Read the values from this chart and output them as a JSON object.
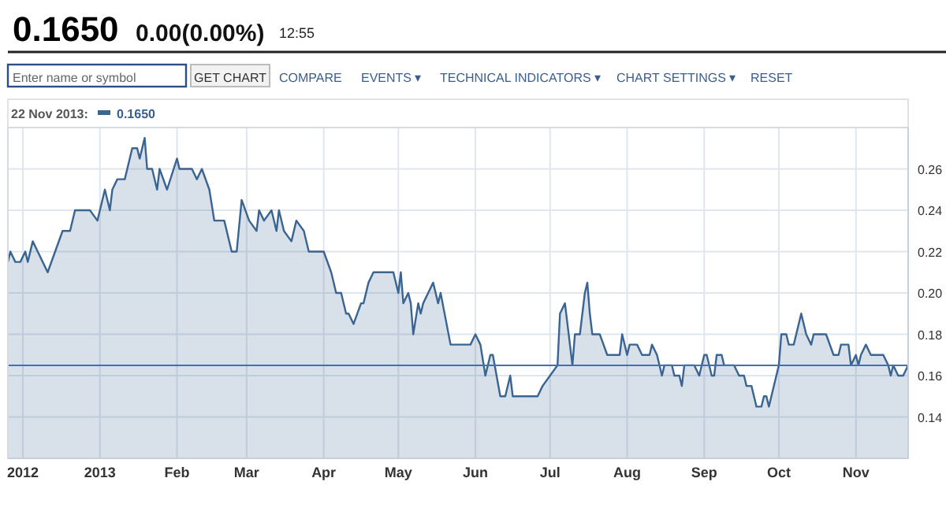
{
  "chart_data": {
    "type": "area",
    "title": "0.1650",
    "subtitle": "0.00(0.00%)",
    "annotations": [
      "12:55",
      "Enter name or symbol",
      "GET CHART",
      "COMPARE",
      "EVENTS ▾",
      "TECHNICAL INDICATORS ▾",
      "CHART SETTINGS ▾",
      "RESET",
      "22 Nov 2013:",
      "0.1650"
    ],
    "x": [
      "2012-11-25",
      "2012-11-26",
      "2012-11-28",
      "2012-11-30",
      "2012-12-02",
      "2012-12-03",
      "2012-12-05",
      "2012-12-07",
      "2012-12-09",
      "2012-12-11",
      "2012-12-14",
      "2012-12-17",
      "2012-12-20",
      "2012-12-22",
      "2012-12-28",
      "2012-12-31",
      "2013-01-03",
      "2013-01-05",
      "2013-01-06",
      "2013-01-08",
      "2013-01-11",
      "2013-01-14",
      "2013-01-16",
      "2013-01-17",
      "2013-01-19",
      "2013-01-20",
      "2013-01-22",
      "2013-01-24",
      "2013-01-25",
      "2013-01-28",
      "2013-02-01",
      "2013-02-02",
      "2013-02-07",
      "2013-02-09",
      "2013-02-11",
      "2013-02-14",
      "2013-02-16",
      "2013-02-20",
      "2013-02-23",
      "2013-02-25",
      "2013-02-27",
      "2013-03-02",
      "2013-03-05",
      "2013-03-06",
      "2013-03-08",
      "2013-03-11",
      "2013-03-13",
      "2013-03-14",
      "2013-03-16",
      "2013-03-19",
      "2013-03-21",
      "2013-03-24",
      "2013-03-26",
      "2013-03-28",
      "2013-04-01",
      "2013-04-04",
      "2013-04-06",
      "2013-04-08",
      "2013-04-10",
      "2013-04-11",
      "2013-04-13",
      "2013-04-16",
      "2013-04-17",
      "2013-04-19",
      "2013-04-21",
      "2013-04-29",
      "2013-05-01",
      "2013-05-02",
      "2013-05-03",
      "2013-05-05",
      "2013-05-06",
      "2013-05-07",
      "2013-05-09",
      "2013-05-10",
      "2013-05-11",
      "2013-05-13",
      "2013-05-15",
      "2013-05-17",
      "2013-05-18",
      "2013-05-22",
      "2013-05-25",
      "2013-05-30",
      "2013-06-01",
      "2013-06-03",
      "2013-06-05",
      "2013-06-07",
      "2013-06-08",
      "2013-06-11",
      "2013-06-13",
      "2013-06-15",
      "2013-06-16",
      "2013-06-26",
      "2013-06-28",
      "2013-07-01",
      "2013-07-04",
      "2013-07-05",
      "2013-07-07",
      "2013-07-08",
      "2013-07-10",
      "2013-07-11",
      "2013-07-13",
      "2013-07-15",
      "2013-07-16",
      "2013-07-17",
      "2013-07-18",
      "2013-07-21",
      "2013-07-24",
      "2013-07-29",
      "2013-07-30",
      "2013-08-01",
      "2013-08-02",
      "2013-08-05",
      "2013-08-07",
      "2013-08-10",
      "2013-08-11",
      "2013-08-13",
      "2013-08-15",
      "2013-08-16",
      "2013-08-19",
      "2013-08-20",
      "2013-08-22",
      "2013-08-23",
      "2013-08-24",
      "2013-08-28",
      "2013-08-30",
      "2013-09-01",
      "2013-09-02",
      "2013-09-04",
      "2013-09-05",
      "2013-09-06",
      "2013-09-08",
      "2013-09-09",
      "2013-09-13",
      "2013-09-15",
      "2013-09-17",
      "2013-09-18",
      "2013-09-20",
      "2013-09-22",
      "2013-09-24",
      "2013-09-25",
      "2013-09-26",
      "2013-09-27",
      "2013-10-01",
      "2013-10-02",
      "2013-10-04",
      "2013-10-05",
      "2013-10-07",
      "2013-10-10",
      "2013-10-12",
      "2013-10-14",
      "2013-10-15",
      "2013-10-20",
      "2013-10-23",
      "2013-10-25",
      "2013-10-26",
      "2013-10-29",
      "2013-10-30",
      "2013-11-01",
      "2013-11-02",
      "2013-11-03",
      "2013-11-05",
      "2013-11-07",
      "2013-11-12",
      "2013-11-14",
      "2013-11-15",
      "2013-11-16",
      "2013-11-18",
      "2013-11-20",
      "2013-11-22"
    ],
    "series": [
      {
        "color": "#3a6491",
        "values": [
          0.215,
          0.22,
          0.215,
          0.215,
          0.22,
          0.215,
          0.225,
          0.22,
          0.215,
          0.21,
          0.22,
          0.23,
          0.23,
          0.24,
          0.24,
          0.235,
          0.25,
          0.24,
          0.25,
          0.255,
          0.255,
          0.27,
          0.27,
          0.265,
          0.275,
          0.26,
          0.26,
          0.25,
          0.26,
          0.25,
          0.265,
          0.26,
          0.26,
          0.255,
          0.26,
          0.25,
          0.235,
          0.235,
          0.22,
          0.22,
          0.245,
          0.235,
          0.23,
          0.24,
          0.235,
          0.24,
          0.23,
          0.24,
          0.23,
          0.225,
          0.235,
          0.23,
          0.22,
          0.22,
          0.22,
          0.21,
          0.2,
          0.2,
          0.19,
          0.19,
          0.185,
          0.195,
          0.195,
          0.205,
          0.21,
          0.21,
          0.2,
          0.21,
          0.195,
          0.2,
          0.195,
          0.18,
          0.195,
          0.19,
          0.195,
          0.2,
          0.205,
          0.195,
          0.2,
          0.175,
          0.175,
          0.175,
          0.18,
          0.175,
          0.16,
          0.17,
          0.17,
          0.15,
          0.15,
          0.16,
          0.15,
          0.15,
          0.155,
          0.16,
          0.165,
          0.19,
          0.195,
          0.185,
          0.165,
          0.18,
          0.18,
          0.2,
          0.205,
          0.19,
          0.18,
          0.18,
          0.17,
          0.17,
          0.18,
          0.17,
          0.175,
          0.175,
          0.17,
          0.17,
          0.175,
          0.17,
          0.16,
          0.165,
          0.165,
          0.16,
          0.16,
          0.155,
          0.165,
          0.165,
          0.16,
          0.17,
          0.17,
          0.16,
          0.16,
          0.17,
          0.17,
          0.165,
          0.165,
          0.16,
          0.16,
          0.155,
          0.155,
          0.145,
          0.145,
          0.15,
          0.15,
          0.145,
          0.165,
          0.18,
          0.18,
          0.175,
          0.175,
          0.19,
          0.18,
          0.175,
          0.18,
          0.18,
          0.17,
          0.17,
          0.175,
          0.175,
          0.165,
          0.17,
          0.165,
          0.17,
          0.175,
          0.17,
          0.17,
          0.165,
          0.16,
          0.165,
          0.16,
          0.16,
          0.165
        ]
      }
    ],
    "xlim": [
      "2012-11-25",
      "2013-11-22"
    ],
    "xticks": [
      {
        "value": "2012-12-01",
        "label": "2012"
      },
      {
        "value": "2013-01-01",
        "label": "2013"
      },
      {
        "value": "2013-02-01",
        "label": "Feb"
      },
      {
        "value": "2013-03-01",
        "label": "Mar"
      },
      {
        "value": "2013-04-01",
        "label": "Apr"
      },
      {
        "value": "2013-05-01",
        "label": "May"
      },
      {
        "value": "2013-06-01",
        "label": "Jun"
      },
      {
        "value": "2013-07-01",
        "label": "Jul"
      },
      {
        "value": "2013-08-01",
        "label": "Aug"
      },
      {
        "value": "2013-09-01",
        "label": "Sep"
      },
      {
        "value": "2013-10-01",
        "label": "Oct"
      },
      {
        "value": "2013-11-01",
        "label": "Nov"
      }
    ],
    "ylim": [
      0.12,
      0.28
    ],
    "yticks": [
      {
        "value": 0.14,
        "label": "0.14"
      },
      {
        "value": 0.16,
        "label": "0.16"
      },
      {
        "value": 0.18,
        "label": "0.18"
      },
      {
        "value": 0.2,
        "label": "0.20"
      },
      {
        "value": 0.22,
        "label": "0.22"
      },
      {
        "value": 0.24,
        "label": "0.24"
      },
      {
        "value": 0.26,
        "label": "0.26"
      }
    ],
    "ref_lines": [
      {
        "axis": "y",
        "value": 0.165,
        "color": "#4a6ea8"
      }
    ],
    "grid": true
  }
}
